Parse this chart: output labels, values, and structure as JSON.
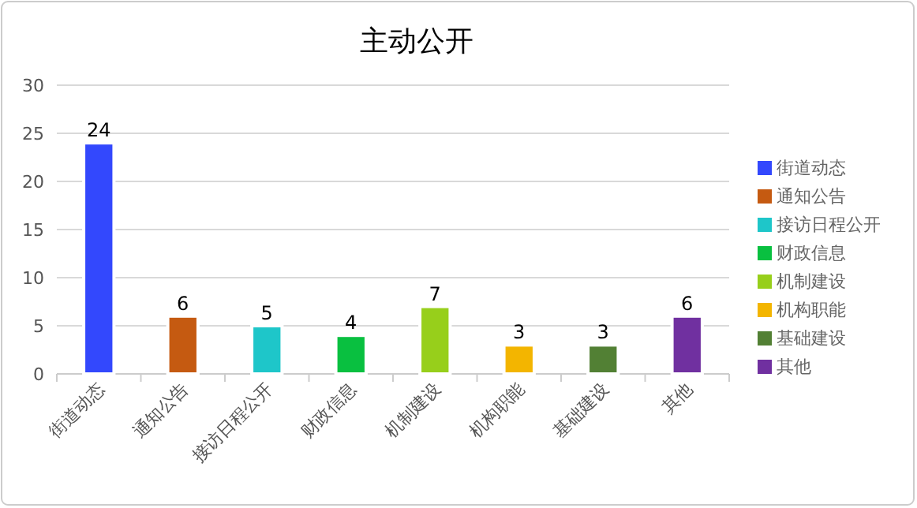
{
  "chart_data": {
    "type": "bar",
    "title": "主动公开",
    "categories": [
      "街道动态",
      "通知公告",
      "接访日程公开",
      "财政信息",
      "机制建设",
      "机构职能",
      "基础建设",
      "其他"
    ],
    "series": [
      {
        "name": "街道动态",
        "color": "#3348fd",
        "values": [
          24,
          null,
          null,
          null,
          null,
          null,
          null,
          null
        ]
      },
      {
        "name": "通知公告",
        "color": "#c55a11",
        "values": [
          null,
          6,
          null,
          null,
          null,
          null,
          null,
          null
        ]
      },
      {
        "name": "接访日程公开",
        "color": "#1ec6c9",
        "values": [
          null,
          null,
          5,
          null,
          null,
          null,
          null,
          null
        ]
      },
      {
        "name": "财政信息",
        "color": "#09c040",
        "values": [
          null,
          null,
          null,
          4,
          null,
          null,
          null,
          null
        ]
      },
      {
        "name": "机制建设",
        "color": "#97cf1b",
        "values": [
          null,
          null,
          null,
          null,
          7,
          null,
          null,
          null
        ]
      },
      {
        "name": "机构职能",
        "color": "#f3b500",
        "values": [
          null,
          null,
          null,
          null,
          null,
          3,
          null,
          null
        ]
      },
      {
        "name": "基础建设",
        "color": "#528034",
        "values": [
          null,
          null,
          null,
          null,
          null,
          null,
          3,
          null
        ]
      },
      {
        "name": "其他",
        "color": "#7030a0",
        "values": [
          null,
          null,
          null,
          null,
          null,
          null,
          null,
          6
        ]
      }
    ],
    "ylim": [
      0,
      30
    ],
    "yticks": [
      0,
      5,
      10,
      15,
      20,
      25,
      30
    ],
    "grid": "y",
    "legend": "right",
    "data_labels": true
  }
}
